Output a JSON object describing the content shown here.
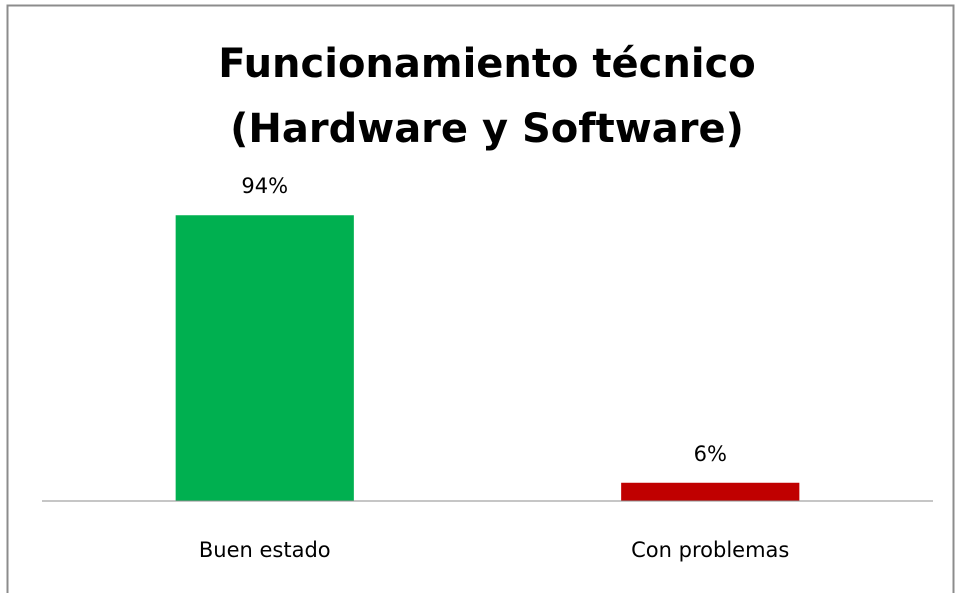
{
  "chart_data": {
    "type": "bar",
    "title": [
      "Funcionamiento técnico",
      "(Hardware y Software)"
    ],
    "categories": [
      "Buen estado",
      "Con problemas"
    ],
    "values": [
      94,
      6
    ],
    "value_labels": [
      "94%",
      "6%"
    ],
    "colors": [
      "#00b050",
      "#c00000"
    ],
    "ylim": [
      0,
      100
    ]
  }
}
